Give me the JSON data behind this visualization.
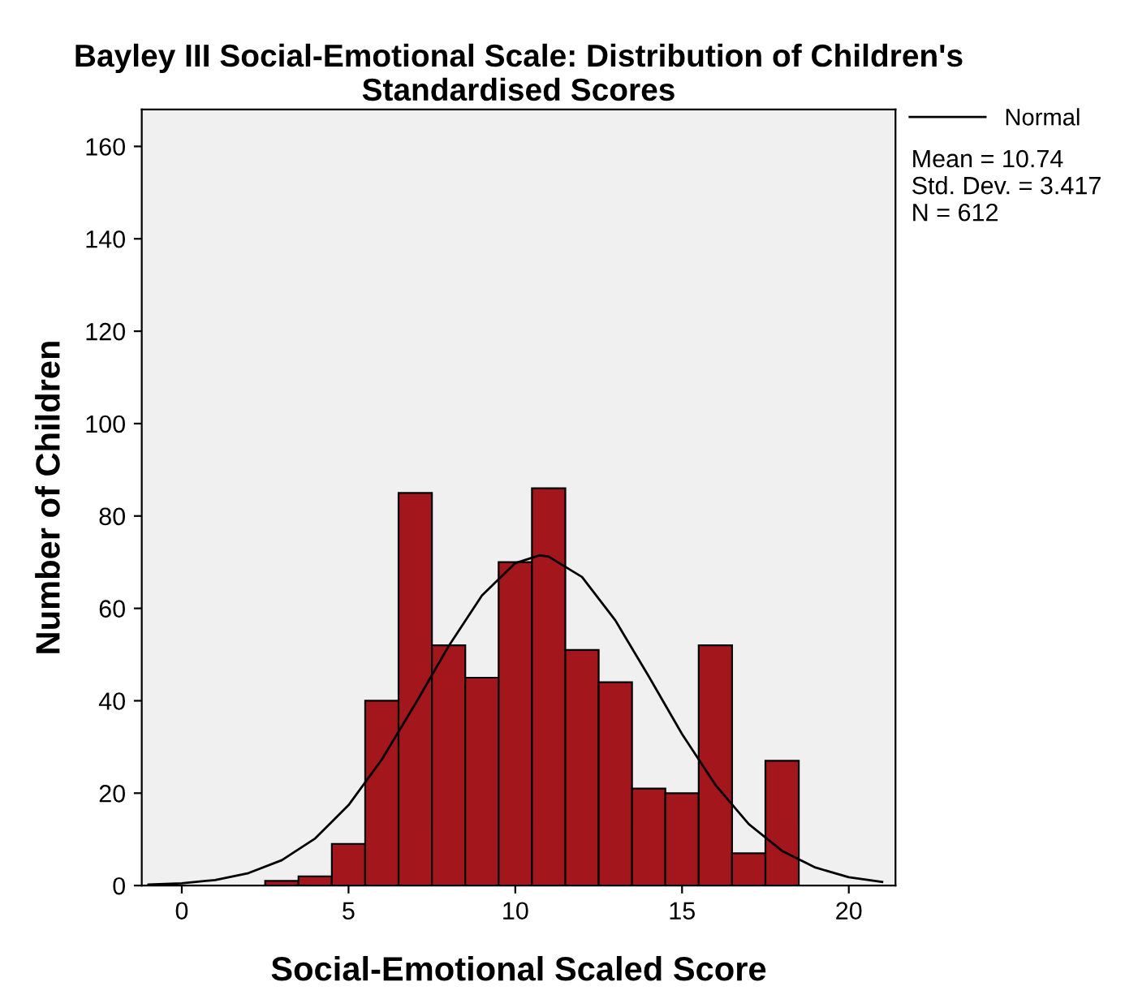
{
  "chart_data": {
    "type": "histogram",
    "title": "Bayley III Social-Emotional Scale: Distribution of Children's Standardised Scores",
    "xlabel": "Social-Emotional Scaled Score",
    "ylabel": "Number of Children",
    "bins": [
      2.5,
      3.5,
      4.5,
      5.5,
      6.5,
      7.5,
      8.5,
      9.5,
      10.5,
      11.5,
      12.5,
      13.5,
      14.5,
      15.5,
      16.5,
      17.5,
      18.5
    ],
    "series": [
      {
        "color": "#a3161b",
        "values": [
          1,
          2,
          9,
          40,
          85,
          52,
          45,
          70,
          86,
          51,
          44,
          21,
          20,
          52,
          7,
          27
        ]
      },
      {
        "type": "line",
        "name": "Normal",
        "color": "#000000",
        "x": [
          -1,
          0,
          1,
          2,
          3,
          4,
          5,
          6,
          7,
          8,
          9,
          10,
          10.74,
          11,
          12,
          13,
          14,
          15,
          16,
          17,
          18,
          19,
          20,
          21
        ],
        "values": [
          0.2,
          0.5,
          1.2,
          2.7,
          5.5,
          10.2,
          17.4,
          27.3,
          39.3,
          51.8,
          62.8,
          69.8,
          71.5,
          71.2,
          66.8,
          57.4,
          45.3,
          32.8,
          21.8,
          13.3,
          7.5,
          3.9,
          1.8,
          0.8
        ]
      }
    ],
    "xlim": [
      -1.2,
      21.4
    ],
    "ylim": [
      0,
      168
    ],
    "xticks": [
      0,
      5,
      10,
      15,
      20
    ],
    "yticks": [
      0,
      20,
      40,
      60,
      80,
      100,
      120,
      140,
      160
    ],
    "legend": "top right",
    "grid": false,
    "annotations": [
      "Mean = 10.74",
      "Std. Dev. = 3.417",
      "N = 612"
    ]
  }
}
